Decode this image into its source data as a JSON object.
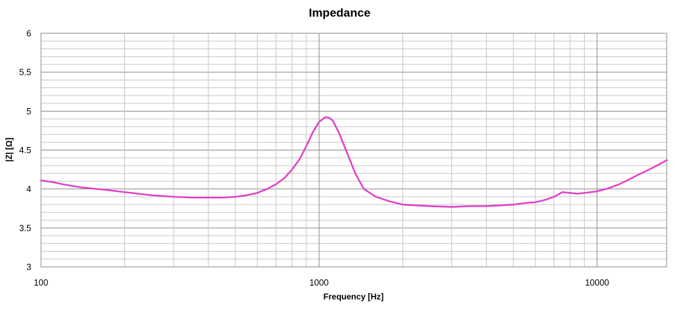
{
  "chart_data": {
    "type": "line",
    "title": "Impedance",
    "xlabel": "Frequency [Hz]",
    "ylabel": "|Z| [Ω]",
    "xscale": "log",
    "xlim": [
      100,
      17800
    ],
    "ylim": [
      3,
      6
    ],
    "grid": true,
    "legend": "none",
    "x_ticks": [
      100,
      1000,
      10000
    ],
    "y_ticks": [
      3,
      3.5,
      4,
      4.5,
      5,
      5.5,
      6
    ],
    "y_tick_labels": [
      "3",
      "3.5",
      "4",
      "4.5",
      "5",
      "5.5",
      "6"
    ],
    "line_color": "#e23fc8",
    "grid_color": "#c6c6c6",
    "grid_major_color": "#8a8a8a",
    "series": [
      {
        "x": [
          100,
          110,
          120,
          140,
          170,
          200,
          250,
          300,
          350,
          400,
          450,
          500,
          550,
          600,
          650,
          700,
          750,
          800,
          850,
          900,
          950,
          1000,
          1050,
          1080,
          1120,
          1180,
          1250,
          1350,
          1450,
          1600,
          1800,
          2000,
          2500,
          3000,
          3500,
          4000,
          4500,
          5000,
          5500,
          6000,
          6500,
          7000,
          7500,
          8000,
          8500,
          9000,
          9500,
          10000,
          11000,
          12000,
          13000,
          14000,
          15000,
          16000,
          17000,
          17800
        ],
        "y": [
          4.11,
          4.09,
          4.06,
          4.02,
          3.99,
          3.96,
          3.92,
          3.9,
          3.89,
          3.89,
          3.89,
          3.9,
          3.92,
          3.95,
          4.0,
          4.06,
          4.14,
          4.25,
          4.38,
          4.55,
          4.73,
          4.86,
          4.92,
          4.92,
          4.88,
          4.72,
          4.5,
          4.2,
          4.0,
          3.9,
          3.84,
          3.8,
          3.78,
          3.77,
          3.78,
          3.78,
          3.79,
          3.8,
          3.82,
          3.83,
          3.86,
          3.9,
          3.96,
          3.95,
          3.94,
          3.95,
          3.96,
          3.97,
          4.01,
          4.06,
          4.12,
          4.18,
          4.23,
          4.28,
          4.33,
          4.37
        ]
      }
    ]
  }
}
